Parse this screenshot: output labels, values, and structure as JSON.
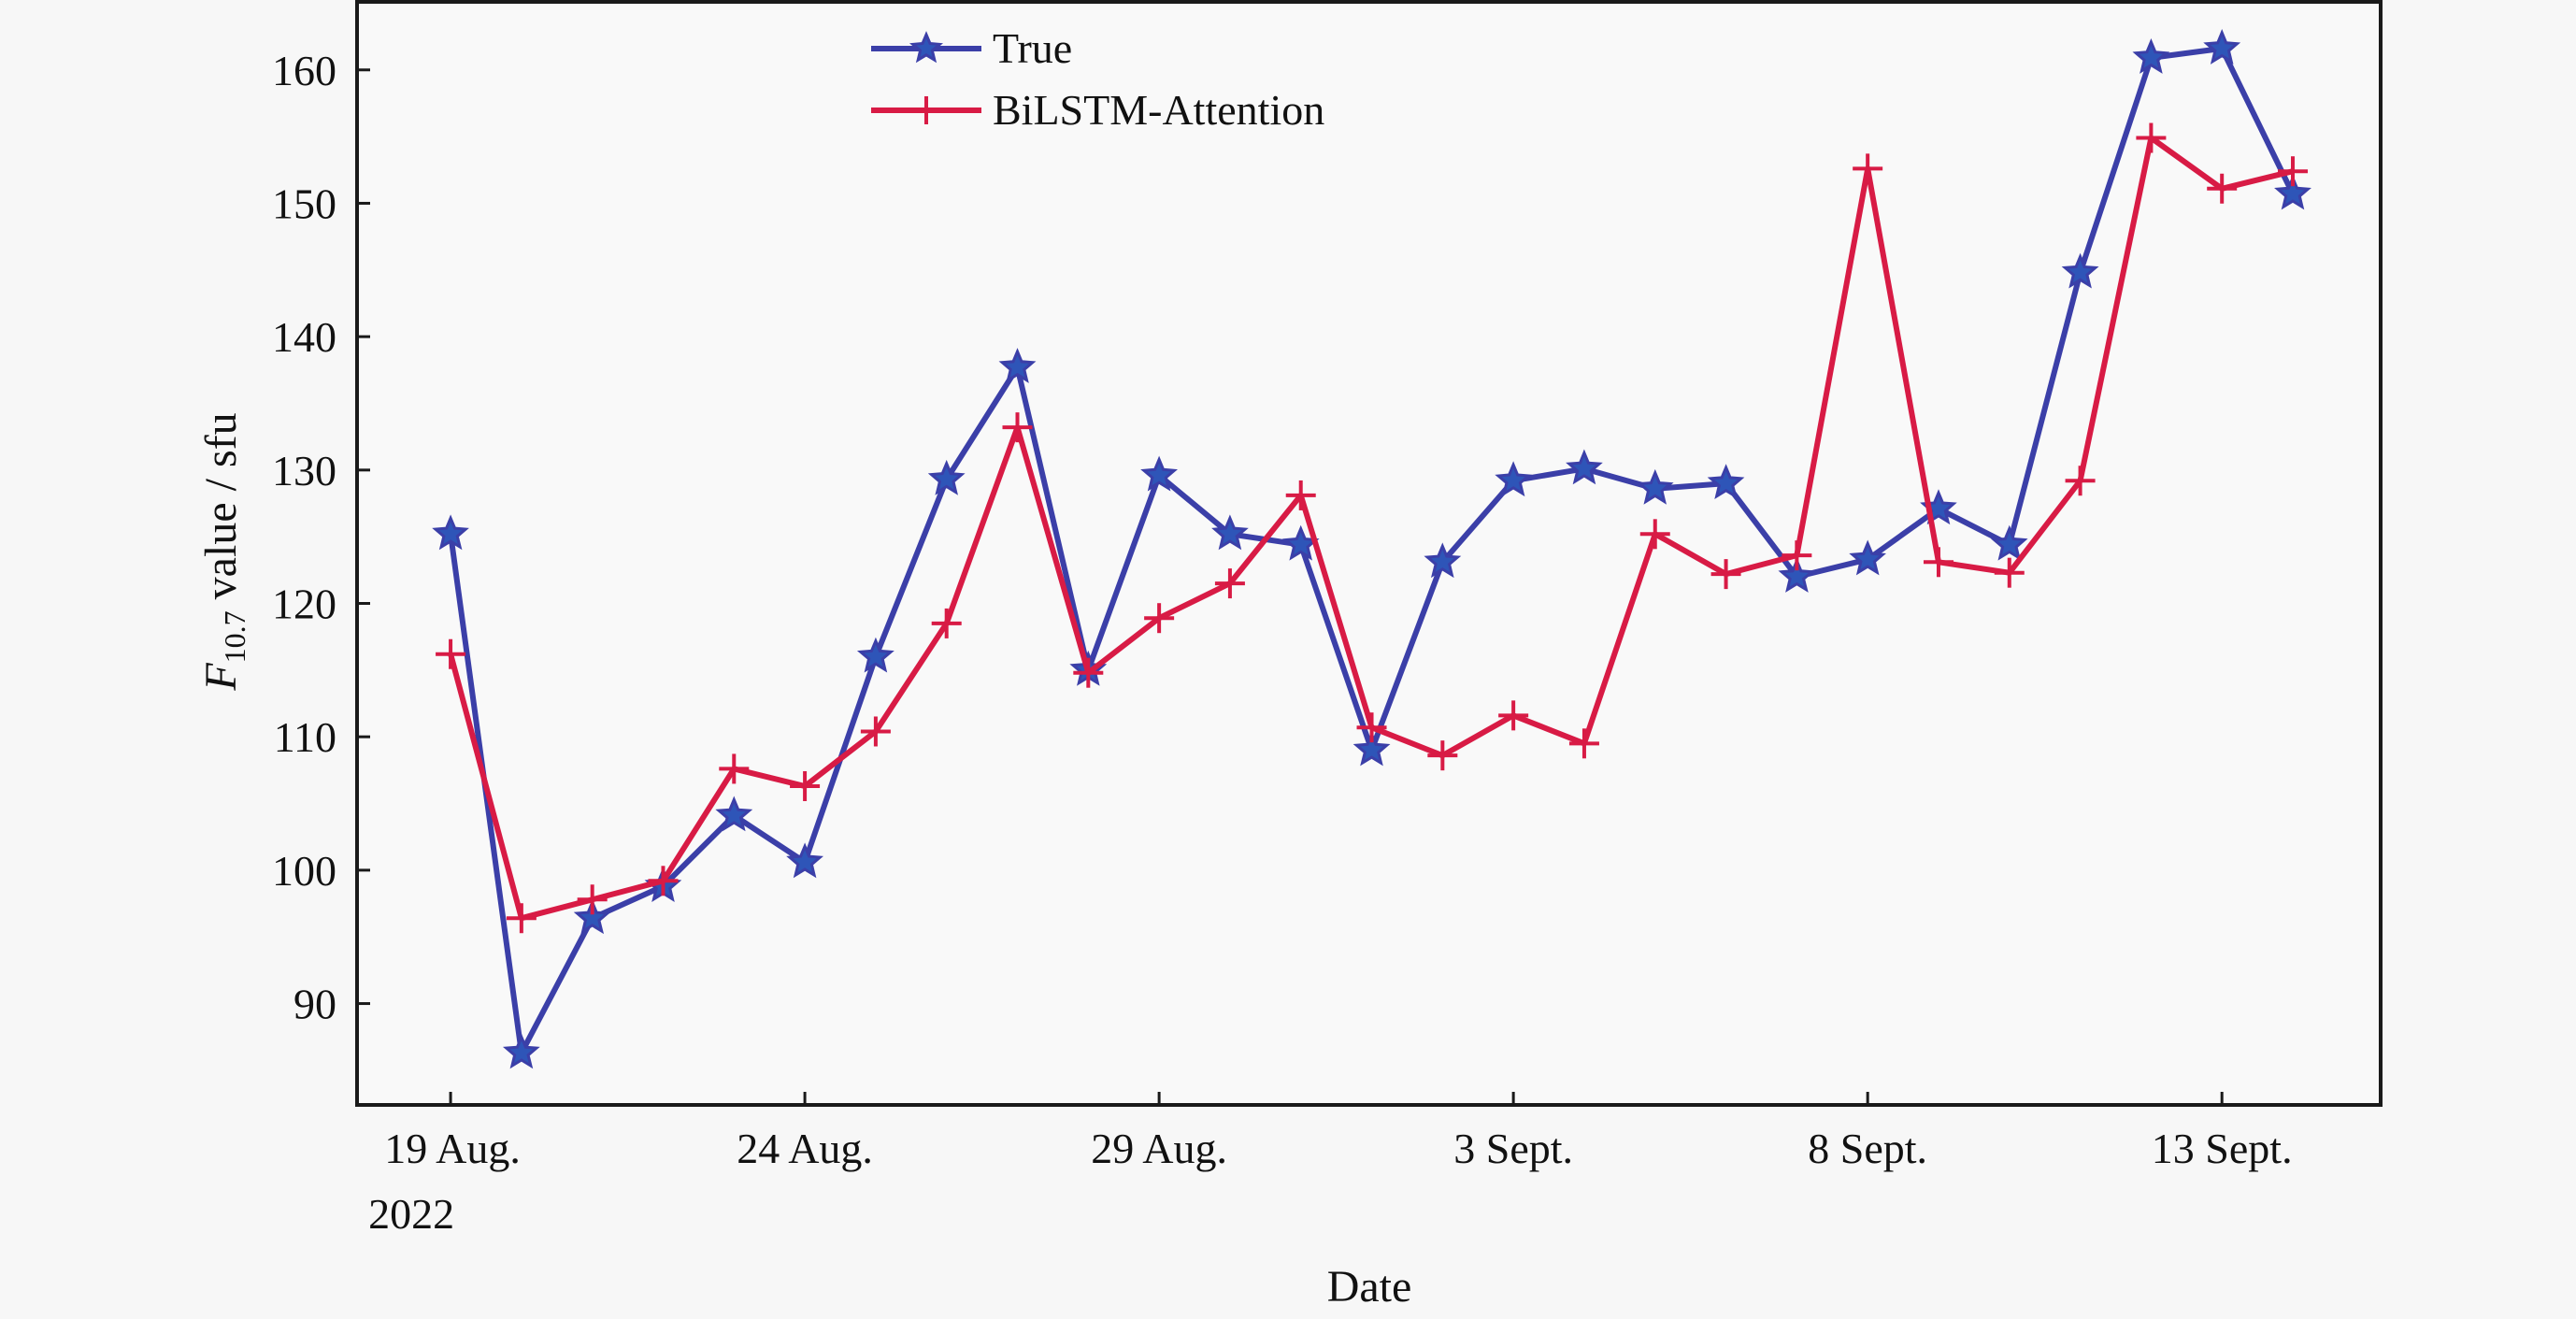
{
  "chart_data": {
    "type": "line",
    "title": "",
    "xlabel": "Date",
    "ylabel_main": "F",
    "ylabel_sub": "10.7",
    "ylabel_rest": " value / sfu",
    "x_start_label": "19 Aug. 2022",
    "x_tick_positions": [
      0,
      5,
      10,
      15,
      20,
      25
    ],
    "x_tick_labels": [
      "19 Aug.",
      "24 Aug.",
      "29 Aug.",
      "3 Sept.",
      "8 Sept.",
      "13 Sept."
    ],
    "x_tick_sublabels": [
      "2022",
      "",
      "",
      "",
      "",
      ""
    ],
    "xlim": [
      -1.32,
      27.24
    ],
    "ylim": [
      82.4,
      165.1
    ],
    "y_ticks": [
      90,
      100,
      110,
      120,
      130,
      140,
      150,
      160
    ],
    "grid": false,
    "legend_position": "top-center",
    "x": [
      0,
      1,
      2,
      3,
      4,
      5,
      6,
      7,
      8,
      9,
      10,
      11,
      12,
      13,
      14,
      15,
      16,
      17,
      18,
      19,
      20,
      21,
      22,
      23,
      24,
      25,
      26
    ],
    "dates": [
      "19 Aug.",
      "20 Aug.",
      "21 Aug.",
      "22 Aug.",
      "23 Aug.",
      "24 Aug.",
      "25 Aug.",
      "26 Aug.",
      "27 Aug.",
      "28 Aug.",
      "29 Aug.",
      "30 Aug.",
      "31 Aug.",
      "1 Sept.",
      "2 Sept.",
      "3 Sept.",
      "4 Sept.",
      "5 Sept.",
      "6 Sept.",
      "7 Sept.",
      "8 Sept.",
      "9 Sept.",
      "10 Sept.",
      "11 Sept.",
      "12 Sept.",
      "13 Sept.",
      "14 Sept."
    ],
    "series": [
      {
        "name": "True",
        "color": "#3b3fa8",
        "marker": "star",
        "values": [
          125.2,
          86.3,
          96.4,
          98.8,
          104.1,
          100.6,
          116.0,
          129.3,
          137.7,
          115.0,
          129.6,
          125.2,
          124.4,
          109.0,
          123.1,
          129.2,
          130.1,
          128.6,
          129.0,
          122.0,
          123.3,
          127.1,
          124.4,
          144.8,
          160.9,
          161.6,
          150.7
        ]
      },
      {
        "name": "BiLSTM-Attention",
        "color": "#d81b45",
        "marker": "plus",
        "values": [
          116.2,
          96.4,
          97.8,
          99.2,
          107.6,
          106.3,
          110.4,
          118.5,
          133.2,
          114.8,
          118.9,
          121.5,
          128.1,
          110.7,
          108.6,
          111.6,
          109.5,
          125.2,
          122.2,
          123.6,
          152.6,
          123.1,
          122.3,
          129.2,
          154.9,
          151.1,
          152.4
        ]
      }
    ]
  }
}
